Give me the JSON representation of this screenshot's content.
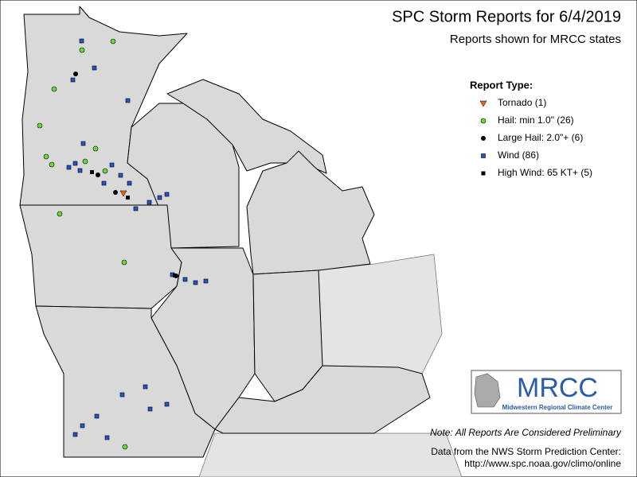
{
  "header": {
    "title": "SPC Storm Reports for 6/4/2019",
    "subtitle": "Reports shown for MRCC states"
  },
  "legend": {
    "title": "Report Type:",
    "items": [
      {
        "label": "Tornado (1)"
      },
      {
        "label": "Hail: min 1.0\" (26)"
      },
      {
        "label": "Large Hail: 2.0\"+ (6)"
      },
      {
        "label": "Wind (86)"
      },
      {
        "label": "High Wind: 65 KT+ (5)"
      }
    ]
  },
  "logo": {
    "name": "MRCC",
    "full_name": "Midwestern Regional Climate Center"
  },
  "note": "Note: All Reports Are Considered Preliminary",
  "source": [
    "Data from the NWS Storm Prediction Center:",
    "http://www.spc.noaa.gov/climo/online"
  ]
}
